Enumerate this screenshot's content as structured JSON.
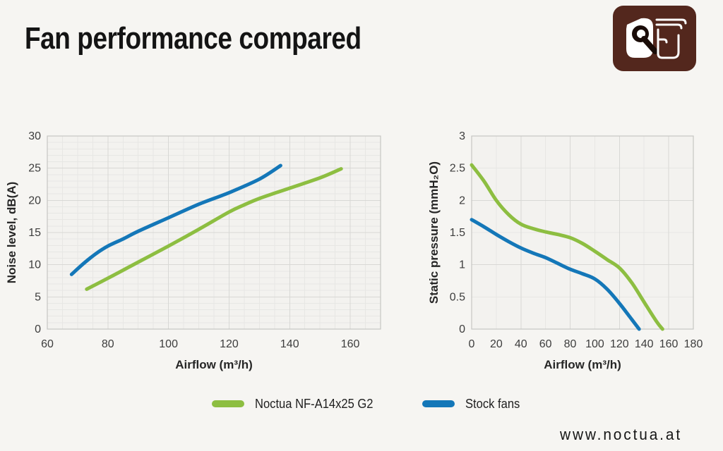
{
  "page": {
    "title": "Fan performance compared",
    "footer_url": "www.noctua.at",
    "background": "#f6f5f2"
  },
  "logo": {
    "name": "noctua-logo",
    "brand_color": "#53271d"
  },
  "legend": {
    "items": [
      {
        "label": "Noctua NF-A14x25 G2",
        "color": "#8dbe41"
      },
      {
        "label": "Stock fans",
        "color": "#1477b8"
      }
    ]
  },
  "colors": {
    "plot_bg": "#f3f2ef",
    "grid_minor": "#e7e7e4",
    "grid_major": "#d8d8d5",
    "plot_border": "#c6c6c3",
    "tick_text": "#3d3d3d",
    "axis_label": "#262626",
    "green": "#8dbe41",
    "blue": "#1477b8"
  },
  "chart_data": [
    {
      "type": "line",
      "title": "",
      "xlabel": "Airflow (m³/h)",
      "ylabel": "Noise level, dB(A)",
      "xlim": [
        60,
        170
      ],
      "ylim": [
        0,
        30
      ],
      "x_ticks": [
        60,
        80,
        100,
        120,
        140,
        160
      ],
      "x_tick_labels": [
        "60",
        "80",
        "100",
        "120",
        "140",
        "160"
      ],
      "y_ticks": [
        0,
        5,
        10,
        15,
        20,
        25,
        30
      ],
      "y_tick_labels": [
        "0",
        "5",
        "10",
        "15",
        "20",
        "25",
        "30"
      ],
      "x_grid": {
        "minor_step": 5,
        "major_step": 20
      },
      "y_grid": {
        "minor_step": 1,
        "major_step": 5
      },
      "grid": true,
      "legend_position": "bottom",
      "series": [
        {
          "name": "Noctua NF-A14x25 G2",
          "color": "#8dbe41",
          "points": [
            [
              73,
              6.2
            ],
            [
              80,
              7.9
            ],
            [
              90,
              10.4
            ],
            [
              100,
              12.9
            ],
            [
              110,
              15.5
            ],
            [
              120,
              18.2
            ],
            [
              125,
              19.3
            ],
            [
              130,
              20.3
            ],
            [
              140,
              21.9
            ],
            [
              150,
              23.5
            ],
            [
              157,
              24.9
            ]
          ]
        },
        {
          "name": "Stock fans",
          "color": "#1477b8",
          "points": [
            [
              68,
              8.5
            ],
            [
              72,
              10.2
            ],
            [
              76,
              11.7
            ],
            [
              80,
              12.9
            ],
            [
              85,
              14.0
            ],
            [
              90,
              15.2
            ],
            [
              100,
              17.3
            ],
            [
              110,
              19.4
            ],
            [
              120,
              21.2
            ],
            [
              130,
              23.3
            ],
            [
              137,
              25.4
            ]
          ]
        }
      ]
    },
    {
      "type": "line",
      "title": "",
      "xlabel": "Airflow (m³/h)",
      "ylabel": "Static pressure (mmH₂O)",
      "xlim": [
        0,
        180
      ],
      "ylim": [
        0,
        3
      ],
      "x_ticks": [
        0,
        20,
        40,
        60,
        80,
        100,
        120,
        140,
        160,
        180
      ],
      "x_tick_labels": [
        "0",
        "20",
        "40",
        "60",
        "80",
        "100",
        "120",
        "140",
        "160",
        "180"
      ],
      "y_ticks": [
        0,
        0.5,
        1,
        1.5,
        2,
        2.5,
        3
      ],
      "y_tick_labels": [
        "0",
        "0.5",
        "1",
        "1.5",
        "2",
        "2.5",
        "3"
      ],
      "x_grid": {
        "minor_step": 20,
        "major_step": 40
      },
      "y_grid": {
        "minor_step": 0.5,
        "major_step": 1
      },
      "grid": true,
      "legend_position": "bottom",
      "series": [
        {
          "name": "Noctua NF-A14x25 G2",
          "color": "#8dbe41",
          "points": [
            [
              0,
              2.55
            ],
            [
              10,
              2.3
            ],
            [
              20,
              2.0
            ],
            [
              30,
              1.78
            ],
            [
              40,
              1.63
            ],
            [
              50,
              1.56
            ],
            [
              60,
              1.51
            ],
            [
              70,
              1.47
            ],
            [
              80,
              1.42
            ],
            [
              90,
              1.33
            ],
            [
              100,
              1.21
            ],
            [
              110,
              1.08
            ],
            [
              120,
              0.95
            ],
            [
              130,
              0.72
            ],
            [
              140,
              0.42
            ],
            [
              150,
              0.12
            ],
            [
              155,
              0
            ]
          ]
        },
        {
          "name": "Stock fans",
          "color": "#1477b8",
          "points": [
            [
              0,
              1.7
            ],
            [
              10,
              1.59
            ],
            [
              20,
              1.47
            ],
            [
              30,
              1.36
            ],
            [
              40,
              1.26
            ],
            [
              50,
              1.18
            ],
            [
              60,
              1.11
            ],
            [
              70,
              1.02
            ],
            [
              80,
              0.93
            ],
            [
              90,
              0.86
            ],
            [
              100,
              0.78
            ],
            [
              110,
              0.62
            ],
            [
              120,
              0.4
            ],
            [
              130,
              0.15
            ],
            [
              136,
              0
            ]
          ]
        }
      ]
    }
  ]
}
